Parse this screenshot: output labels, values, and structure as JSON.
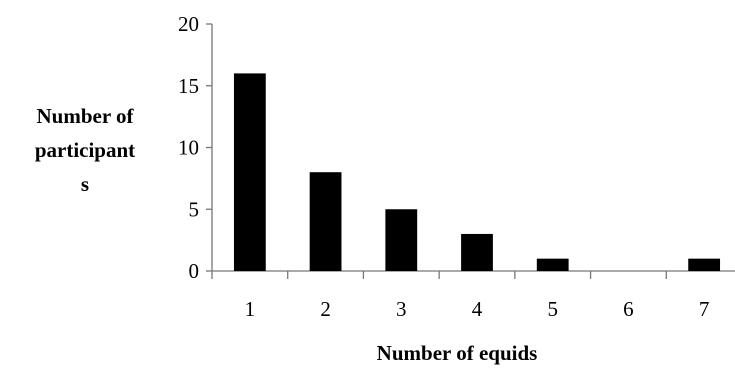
{
  "chart_data": {
    "type": "bar",
    "categories": [
      "1",
      "2",
      "3",
      "4",
      "5",
      "6",
      "7"
    ],
    "values": [
      16,
      8,
      5,
      3,
      1,
      0,
      1
    ],
    "title": "",
    "xlabel": "Number of equids",
    "ylabel_lines": [
      "Number of",
      "participant",
      "s"
    ],
    "ylim": [
      0,
      20
    ],
    "yticks": [
      "0",
      "5",
      "10",
      "15",
      "20"
    ],
    "grid": false,
    "legend": "none",
    "bar_color": "#000000"
  }
}
